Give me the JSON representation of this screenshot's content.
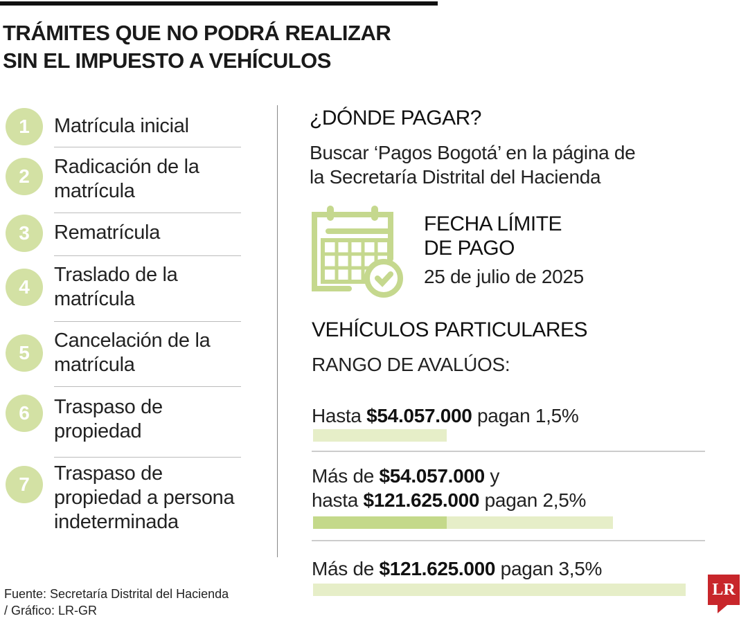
{
  "title": {
    "line1": "TRÁMITES QUE NO PODRÁ REALIZAR",
    "line2": "SIN EL IMPUESTO A VEHÍCULOS"
  },
  "items": [
    {
      "n": "1",
      "l1": "Matrícula inicial",
      "l2": ""
    },
    {
      "n": "2",
      "l1": "Radicación de la",
      "l2": "matrícula"
    },
    {
      "n": "3",
      "l1": "Rematrícula",
      "l2": ""
    },
    {
      "n": "4",
      "l1": "Traslado de la",
      "l2": "matrícula"
    },
    {
      "n": "5",
      "l1": "Cancelación de la",
      "l2": "matrícula"
    },
    {
      "n": "6",
      "l1": "Traspaso de",
      "l2": "propiedad"
    },
    {
      "n": "7",
      "l1": "Traspaso de",
      "l2": "propiedad a persona",
      "l3": "indeterminada"
    }
  ],
  "where": {
    "heading": "¿DÓNDE PAGAR?",
    "l1": "Buscar ‘Pagos Bogotá’ en la página de",
    "l2": "la Secretaría Distrital del Hacienda"
  },
  "deadline": {
    "l1": "FECHA LÍMITE",
    "l2": "DE PAGO",
    "date": "25 de julio de 2025",
    "icon": "calendar-check-icon"
  },
  "vehicles": {
    "heading": "VEHÍCULOS PARTICULARES",
    "sub": "RANGO DE AVALÚOS:"
  },
  "ranges": [
    {
      "pre": "Hasta ",
      "amt": "$54.057.000",
      "post": " pagan 1,5%",
      "rate": 1.5
    },
    {
      "pre": "Más de ",
      "amt": "$54.057.000",
      "post": " y",
      "pre2": "hasta ",
      "amt2": "$121.625.000",
      "post2": " pagan 2,5%",
      "rate": 2.5
    },
    {
      "pre": "Más de ",
      "amt": "$121.625.000",
      "post": " pagan 3,5%",
      "rate": 3.5
    }
  ],
  "source": {
    "l1": "Fuente: Secretaría Distrital del Hacienda",
    "l2": "/ Gráfico: LR-GR"
  },
  "logo": "LR",
  "colors": {
    "light": "#e6eec8",
    "dark": "#c4d98a",
    "circle": "#d3e1a4",
    "logo": "#c8262b"
  }
}
